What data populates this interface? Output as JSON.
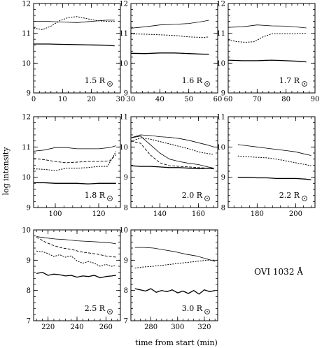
{
  "chart_data": {
    "type": "line",
    "ylabel": "log intensity",
    "xlabel": "time from start (min)",
    "annotation": "OVI 1032 Å",
    "panels": [
      {
        "label": "1.5 R",
        "xlim": [
          0,
          30
        ],
        "xticks": [
          0,
          10,
          20,
          30
        ],
        "ylim": [
          9,
          12
        ],
        "yticks": [
          9,
          10,
          11,
          12
        ],
        "series": [
          {
            "style": "solid-thin",
            "x": [
              0,
              5,
              10,
              15,
              20,
              25,
              28
            ],
            "y": [
              11.4,
              11.4,
              11.38,
              11.36,
              11.4,
              11.44,
              11.44
            ]
          },
          {
            "style": "dotted",
            "x": [
              0,
              3,
              6,
              9,
              12,
              15,
              18,
              22,
              26,
              28
            ],
            "y": [
              11.18,
              11.12,
              11.24,
              11.42,
              11.53,
              11.56,
              11.5,
              11.42,
              11.4,
              11.4
            ]
          },
          {
            "style": "solid-thick",
            "x": [
              0,
              5,
              10,
              15,
              20,
              25,
              28
            ],
            "y": [
              10.64,
              10.64,
              10.63,
              10.62,
              10.61,
              10.6,
              10.58
            ]
          }
        ]
      },
      {
        "label": "1.6 R",
        "xlim": [
          30,
          60
        ],
        "xticks": [
          30,
          40,
          50,
          60
        ],
        "ylim": [
          9,
          12
        ],
        "yticks": [
          9,
          10,
          11,
          12
        ],
        "series": [
          {
            "style": "solid-thin",
            "x": [
              30,
              35,
              40,
              45,
              50,
              55,
              57
            ],
            "y": [
              11.17,
              11.22,
              11.28,
              11.3,
              11.33,
              11.4,
              11.44
            ]
          },
          {
            "style": "dotted",
            "x": [
              30,
              35,
              40,
              45,
              50,
              55,
              57
            ],
            "y": [
              10.98,
              10.97,
              10.95,
              10.93,
              10.88,
              10.86,
              10.88
            ]
          },
          {
            "style": "solid-thick",
            "x": [
              30,
              35,
              40,
              45,
              50,
              55,
              57
            ],
            "y": [
              10.33,
              10.32,
              10.34,
              10.34,
              10.32,
              10.3,
              10.3
            ]
          }
        ]
      },
      {
        "label": "1.7 R",
        "xlim": [
          60,
          90
        ],
        "xticks": [
          60,
          70,
          80,
          90
        ],
        "ylim": [
          9,
          12
        ],
        "yticks": [
          9,
          10,
          11,
          12
        ],
        "series": [
          {
            "style": "solid-thin",
            "x": [
              60,
              65,
              70,
              75,
              80,
              85,
              87
            ],
            "y": [
              11.2,
              11.22,
              11.28,
              11.25,
              11.24,
              11.2,
              11.18
            ]
          },
          {
            "style": "dotted",
            "x": [
              60,
              63,
              66,
              69,
              72,
              75,
              78,
              82,
              86,
              87
            ],
            "y": [
              10.78,
              10.72,
              10.7,
              10.72,
              10.88,
              10.98,
              10.98,
              10.98,
              11.0,
              11.0
            ]
          },
          {
            "style": "solid-thick",
            "x": [
              60,
              65,
              70,
              75,
              80,
              85,
              87
            ],
            "y": [
              10.1,
              10.08,
              10.08,
              10.1,
              10.08,
              10.06,
              10.04
            ]
          }
        ]
      },
      {
        "label": "1.8 R",
        "xlim": [
          90,
          130
        ],
        "xticks": [
          100,
          120
        ],
        "ylim": [
          9,
          12
        ],
        "yticks": [
          9,
          10,
          11,
          12
        ],
        "series": [
          {
            "style": "solid-thin",
            "x": [
              90,
              95,
              100,
              105,
              110,
              115,
              120,
              125,
              128
            ],
            "y": [
              10.86,
              10.9,
              10.98,
              10.98,
              10.94,
              10.94,
              10.94,
              10.98,
              11.04
            ]
          },
          {
            "style": "dashed",
            "x": [
              90,
              95,
              100,
              105,
              110,
              115,
              120,
              125,
              128
            ],
            "y": [
              10.62,
              10.58,
              10.52,
              10.48,
              10.5,
              10.52,
              10.52,
              10.54,
              10.74
            ]
          },
          {
            "style": "dotted",
            "x": [
              90,
              95,
              100,
              105,
              110,
              115,
              120,
              124,
              126,
              128
            ],
            "y": [
              10.28,
              10.26,
              10.22,
              10.3,
              10.3,
              10.32,
              10.36,
              10.36,
              10.6,
              10.85
            ]
          },
          {
            "style": "solid-thick",
            "x": [
              90,
              95,
              100,
              105,
              110,
              115,
              120,
              125,
              128
            ],
            "y": [
              9.82,
              9.82,
              9.8,
              9.8,
              9.8,
              9.78,
              9.8,
              9.8,
              9.8
            ]
          }
        ]
      },
      {
        "label": "2.0 R",
        "xlim": [
          125,
          170
        ],
        "xticks": [
          140,
          160
        ],
        "ylim": [
          8,
          11
        ],
        "yticks": [
          8,
          9,
          10,
          11
        ],
        "series": [
          {
            "style": "solid-thin",
            "x": [
              125,
              130,
              135,
              140,
              145,
              150,
              155,
              160,
              165,
              168
            ],
            "y": [
              10.3,
              10.4,
              10.38,
              10.34,
              10.32,
              10.28,
              10.22,
              10.14,
              10.06,
              10.0
            ]
          },
          {
            "style": "dotted",
            "x": [
              125,
              130,
              135,
              140,
              145,
              150,
              155,
              160,
              165,
              168
            ],
            "y": [
              10.18,
              10.3,
              10.26,
              10.18,
              10.1,
              10.02,
              9.94,
              9.84,
              9.78,
              9.76
            ]
          },
          {
            "style": "solid-thin-2",
            "x": [
              125,
              130,
              135,
              140,
              145,
              150,
              155,
              160,
              165,
              168
            ],
            "y": [
              10.3,
              10.36,
              10.08,
              9.8,
              9.6,
              9.52,
              9.46,
              9.42,
              9.34,
              9.3
            ]
          },
          {
            "style": "dashed",
            "x": [
              125,
              130,
              135,
              140,
              145,
              150,
              155,
              160,
              165,
              168
            ],
            "y": [
              10.2,
              10.12,
              9.74,
              9.48,
              9.38,
              9.36,
              9.34,
              9.32,
              9.3,
              9.28
            ]
          },
          {
            "style": "solid-thick",
            "x": [
              125,
              130,
              135,
              140,
              145,
              150,
              155,
              160,
              165,
              168
            ],
            "y": [
              9.38,
              9.36,
              9.36,
              9.34,
              9.32,
              9.32,
              9.3,
              9.28,
              9.3,
              9.28
            ]
          }
        ]
      },
      {
        "label": "2.2 R",
        "xlim": [
          165,
          210
        ],
        "xticks": [
          180,
          200
        ],
        "ylim": [
          8,
          11
        ],
        "yticks": [
          8,
          9,
          10,
          11
        ],
        "series": [
          {
            "style": "solid-thin",
            "x": [
              170,
              175,
              180,
              185,
              190,
              195,
              200,
              205,
              208
            ],
            "y": [
              10.08,
              10.04,
              10.0,
              9.96,
              9.92,
              9.88,
              9.84,
              9.76,
              9.72
            ]
          },
          {
            "style": "dotted",
            "x": [
              170,
              175,
              180,
              185,
              190,
              195,
              200,
              205,
              208
            ],
            "y": [
              9.7,
              9.68,
              9.66,
              9.64,
              9.6,
              9.54,
              9.48,
              9.42,
              9.38
            ]
          },
          {
            "style": "solid-thick",
            "x": [
              170,
              175,
              180,
              185,
              190,
              195,
              200,
              205,
              208
            ],
            "y": [
              9.0,
              9.0,
              8.98,
              8.98,
              8.96,
              8.96,
              8.96,
              8.94,
              8.92
            ]
          }
        ]
      },
      {
        "label": "2.5 R",
        "xlim": [
          210,
          270
        ],
        "xticks": [
          220,
          240,
          260
        ],
        "ylim": [
          7,
          10
        ],
        "yticks": [
          7,
          8,
          9,
          10
        ],
        "series": [
          {
            "style": "solid-thin",
            "x": [
              212,
              218,
              225,
              232,
              240,
              248,
              255,
              262,
              267
            ],
            "y": [
              9.78,
              9.74,
              9.7,
              9.68,
              9.64,
              9.62,
              9.6,
              9.58,
              9.54
            ]
          },
          {
            "style": "dashed",
            "x": [
              212,
              218,
              224,
              230,
              236,
              242,
              248,
              254,
              260,
              267
            ],
            "y": [
              9.76,
              9.6,
              9.48,
              9.4,
              9.36,
              9.28,
              9.24,
              9.2,
              9.14,
              9.1
            ]
          },
          {
            "style": "dotted",
            "x": [
              212,
              216,
              220,
              224,
              228,
              232,
              236,
              240,
              244,
              248,
              252,
              256,
              260,
              264,
              267
            ],
            "y": [
              9.3,
              9.28,
              9.22,
              9.12,
              9.18,
              9.1,
              9.14,
              8.98,
              8.9,
              8.96,
              8.9,
              8.8,
              8.86,
              8.8,
              8.82
            ]
          },
          {
            "style": "solid-thick",
            "x": [
              212,
              216,
              220,
              224,
              228,
              232,
              236,
              240,
              244,
              248,
              252,
              256,
              260,
              264,
              267
            ],
            "y": [
              8.56,
              8.6,
              8.5,
              8.54,
              8.52,
              8.48,
              8.5,
              8.44,
              8.48,
              8.46,
              8.5,
              8.42,
              8.46,
              8.48,
              8.5
            ]
          }
        ]
      },
      {
        "label": "3.0 R",
        "xlim": [
          265,
          330
        ],
        "xticks": [
          280,
          300,
          320
        ],
        "ylim": [
          7,
          10
        ],
        "yticks": [
          7,
          8,
          9,
          10
        ],
        "series": [
          {
            "style": "solid-thin",
            "x": [
              268,
              275,
              282,
              290,
              298,
              306,
              314,
              322,
              328
            ],
            "y": [
              9.42,
              9.42,
              9.4,
              9.34,
              9.28,
              9.2,
              9.14,
              9.04,
              8.96
            ]
          },
          {
            "style": "dotted",
            "x": [
              268,
              275,
              282,
              290,
              298,
              306,
              314,
              322,
              328
            ],
            "y": [
              8.74,
              8.78,
              8.8,
              8.84,
              8.88,
              8.92,
              8.96,
              9.0,
              9.0
            ]
          },
          {
            "style": "solid-thick",
            "x": [
              268,
              272,
              276,
              280,
              284,
              288,
              292,
              296,
              300,
              304,
              308,
              312,
              316,
              320,
              324,
              328
            ],
            "y": [
              8.06,
              8.02,
              7.98,
              8.06,
              7.94,
              8.0,
              7.96,
              8.02,
              7.92,
              7.98,
              7.9,
              8.0,
              7.88,
              8.02,
              7.96,
              8.0
            ]
          }
        ]
      }
    ]
  }
}
